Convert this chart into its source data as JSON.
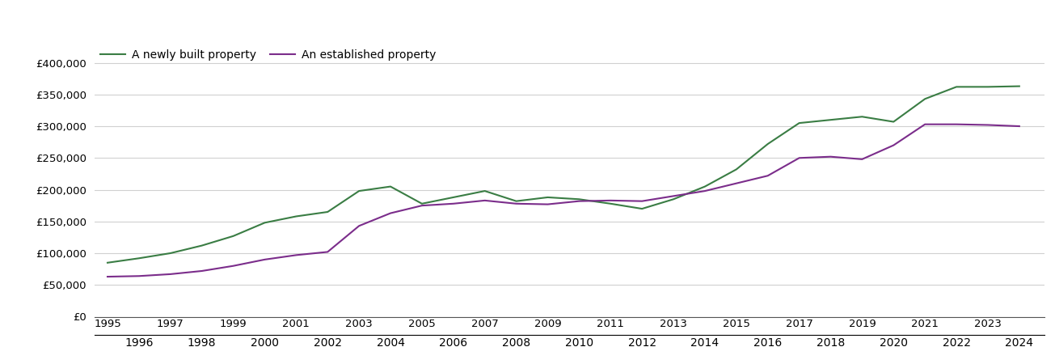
{
  "newly_built": {
    "years": [
      1995,
      1996,
      1997,
      1998,
      1999,
      2000,
      2001,
      2002,
      2003,
      2004,
      2005,
      2006,
      2007,
      2008,
      2009,
      2010,
      2011,
      2012,
      2013,
      2014,
      2015,
      2016,
      2017,
      2018,
      2019,
      2020,
      2021,
      2022,
      2023,
      2024
    ],
    "values": [
      85000,
      92000,
      100000,
      112000,
      127000,
      148000,
      158000,
      165000,
      198000,
      205000,
      178000,
      188000,
      198000,
      182000,
      188000,
      185000,
      178000,
      170000,
      185000,
      205000,
      232000,
      272000,
      305000,
      310000,
      315000,
      307000,
      343000,
      362000,
      362000,
      363000
    ]
  },
  "established": {
    "years": [
      1995,
      1996,
      1997,
      1998,
      1999,
      2000,
      2001,
      2002,
      2003,
      2004,
      2005,
      2006,
      2007,
      2008,
      2009,
      2010,
      2011,
      2012,
      2013,
      2014,
      2015,
      2016,
      2017,
      2018,
      2019,
      2020,
      2021,
      2022,
      2023,
      2024
    ],
    "values": [
      63000,
      64000,
      67000,
      72000,
      80000,
      90000,
      97000,
      102000,
      143000,
      163000,
      175000,
      178000,
      183000,
      178000,
      177000,
      182000,
      183000,
      182000,
      190000,
      198000,
      210000,
      222000,
      250000,
      252000,
      248000,
      270000,
      303000,
      303000,
      302000,
      300000
    ]
  },
  "newly_built_color": "#3a7d44",
  "established_color": "#7b2d8b",
  "newly_built_label": "A newly built property",
  "established_label": "An established property",
  "ylim": [
    0,
    430000
  ],
  "yticks": [
    0,
    50000,
    100000,
    150000,
    200000,
    250000,
    300000,
    350000,
    400000
  ],
  "ytick_labels": [
    "£0",
    "£50,000",
    "£100,000",
    "£150,000",
    "£200,000",
    "£250,000",
    "£300,000",
    "£350,000",
    "£400,000"
  ],
  "xlim": [
    1994.6,
    2024.8
  ],
  "xticks_top": [
    1995,
    1997,
    1999,
    2001,
    2003,
    2005,
    2007,
    2009,
    2011,
    2013,
    2015,
    2017,
    2019,
    2021,
    2023
  ],
  "xticks_bottom": [
    1996,
    1998,
    2000,
    2002,
    2004,
    2006,
    2008,
    2010,
    2012,
    2014,
    2016,
    2018,
    2020,
    2022,
    2024
  ],
  "background_color": "#ffffff",
  "grid_color": "#d0d0d0",
  "line_width": 1.5,
  "legend_fontsize": 10,
  "tick_fontsize": 9.5,
  "fig_width": 13.05,
  "fig_height": 4.5
}
